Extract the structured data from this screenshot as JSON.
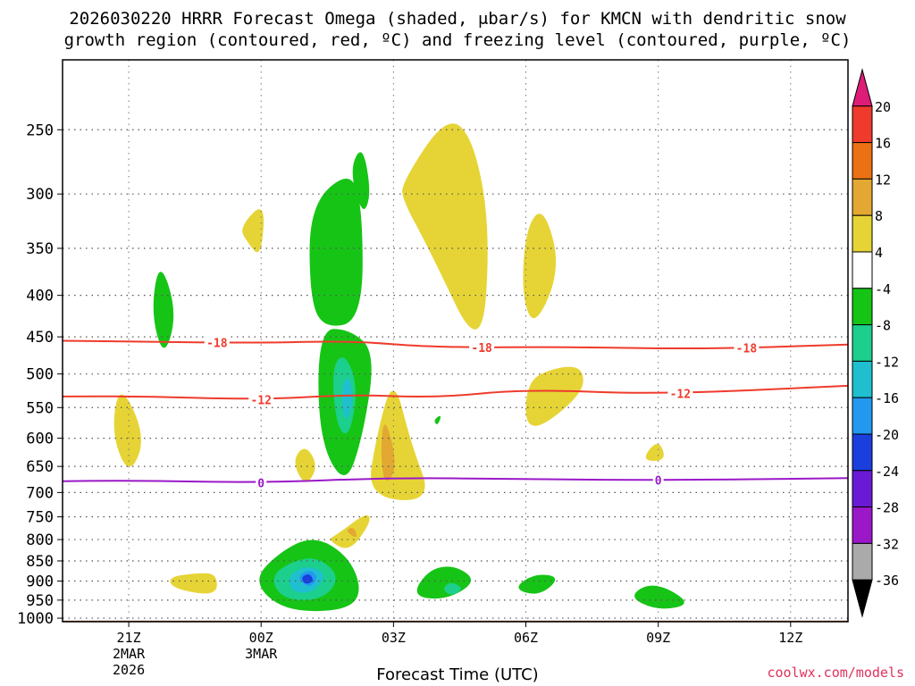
{
  "title_line1": "2026030220 HRRR Forecast Omega (shaded, μbar/s) for KMCN with dendritic snow",
  "title_line2": "growth region (contoured, red, ºC) and freezing level (contoured, purple, ºC)",
  "credit": "coolwx.com/models",
  "chart_data": {
    "type": "heatmap",
    "title": "2026030220 HRRR Forecast Omega (shaded, μbar/s) for KMCN with dendritic snow growth region (contoured, red, ºC) and freezing level (contoured, purple, ºC)",
    "xlabel": "Forecast Time (UTC)",
    "ylabel": "",
    "xlim_hours": [
      -1.5,
      16.3
    ],
    "ylim_pressure_hpa": [
      1010,
      205
    ],
    "x_ticks": [
      {
        "hour": 0,
        "label": "21Z",
        "sub1": "2MAR",
        "sub2": "2026"
      },
      {
        "hour": 3,
        "label": "00Z",
        "sub1": "3MAR",
        "sub2": ""
      },
      {
        "hour": 6,
        "label": "03Z",
        "sub1": "",
        "sub2": ""
      },
      {
        "hour": 9,
        "label": "06Z",
        "sub1": "",
        "sub2": ""
      },
      {
        "hour": 12,
        "label": "09Z",
        "sub1": "",
        "sub2": ""
      },
      {
        "hour": 15,
        "label": "12Z",
        "sub1": "",
        "sub2": ""
      }
    ],
    "y_ticks": [
      250,
      300,
      350,
      400,
      450,
      500,
      550,
      600,
      650,
      700,
      750,
      800,
      850,
      900,
      950,
      1000
    ],
    "colorbar": {
      "labels": [
        "20",
        "16",
        "12",
        "8",
        "4",
        "-4",
        "-8",
        "-12",
        "-16",
        "-20",
        "-24",
        "-28",
        "-32",
        "-36"
      ],
      "bins": [
        {
          "color": "#dd1c77",
          "shape": "tri"
        },
        {
          "color": "#ef3b2c"
        },
        {
          "color": "#ec7014"
        },
        {
          "color": "#e2a832"
        },
        {
          "color": "#e6d436"
        },
        {
          "color": "#ffffff"
        },
        {
          "color": "#16c416"
        },
        {
          "color": "#1ccf8c"
        },
        {
          "color": "#1fbfcf"
        },
        {
          "color": "#2299ee"
        },
        {
          "color": "#1a3fdd"
        },
        {
          "color": "#6a1ad4"
        },
        {
          "color": "#9a18c8"
        },
        {
          "color": "#aaaaaa"
        },
        {
          "color": "#000000",
          "shape": "tri"
        }
      ]
    },
    "omega_regions": [
      {
        "name": "yellow-region-a",
        "color": "#e6d436",
        "points": [
          [
            -0.2,
            510
          ],
          [
            0.4,
            600
          ],
          [
            0.0,
            670
          ],
          [
            -0.4,
            590
          ]
        ]
      },
      {
        "name": "yellow-region-b",
        "color": "#e6d436",
        "points": [
          [
            2.5,
            330
          ],
          [
            3.1,
            305
          ],
          [
            3.0,
            360
          ],
          [
            2.7,
            345
          ]
        ]
      },
      {
        "name": "yellow-region-c",
        "color": "#e6d436",
        "points": [
          [
            6.2,
            290
          ],
          [
            7.2,
            240
          ],
          [
            7.8,
            255
          ],
          [
            8.2,
            330
          ],
          [
            8.0,
            480
          ],
          [
            6.8,
            350
          ],
          [
            6.2,
            305
          ]
        ]
      },
      {
        "name": "yellow-region-d",
        "color": "#e6d436",
        "points": [
          [
            9.0,
            330
          ],
          [
            9.4,
            310
          ],
          [
            9.8,
            370
          ],
          [
            9.2,
            440
          ],
          [
            8.9,
            400
          ]
        ]
      },
      {
        "name": "yellow-region-e",
        "color": "#e6d436",
        "points": [
          [
            9.0,
            510
          ],
          [
            9.7,
            490
          ],
          [
            10.3,
            490
          ],
          [
            10.3,
            530
          ],
          [
            9.0,
            600
          ]
        ]
      },
      {
        "name": "yellow-region-f",
        "color": "#e6d436",
        "points": [
          [
            11.6,
            640
          ],
          [
            12.0,
            600
          ],
          [
            12.2,
            640
          ]
        ]
      },
      {
        "name": "yellow-region-g",
        "color": "#e6d436",
        "points": [
          [
            4.0,
            610
          ],
          [
            4.3,
            650
          ],
          [
            4.0,
            690
          ],
          [
            3.7,
            640
          ]
        ]
      },
      {
        "name": "yellow-region-h",
        "color": "#e6d436",
        "points": [
          [
            6.0,
            500
          ],
          [
            6.4,
            610
          ],
          [
            6.9,
            720
          ],
          [
            5.4,
            710
          ],
          [
            5.6,
            600
          ]
        ]
      },
      {
        "name": "yellow-region-i",
        "color": "#e6d436",
        "points": [
          [
            4.7,
            790
          ],
          [
            5.4,
            740
          ],
          [
            5.5,
            760
          ],
          [
            5.0,
            830
          ],
          [
            4.5,
            800
          ]
        ]
      },
      {
        "name": "yellow-region-j",
        "color": "#e6d436",
        "points": [
          [
            0.9,
            890
          ],
          [
            1.5,
            880
          ],
          [
            2.0,
            880
          ],
          [
            2.0,
            940
          ],
          [
            1.0,
            920
          ]
        ]
      },
      {
        "name": "orange-region-a",
        "color": "#e2a832",
        "points": [
          [
            5.8,
            560
          ],
          [
            6.1,
            650
          ],
          [
            5.8,
            690
          ],
          [
            5.7,
            620
          ]
        ]
      },
      {
        "name": "orange-region-b",
        "color": "#e2a832",
        "points": [
          [
            4.9,
            780
          ],
          [
            5.1,
            770
          ],
          [
            5.2,
            800
          ]
        ]
      },
      {
        "name": "green-region-a",
        "color": "#16c416",
        "points": [
          [
            4.1,
            310
          ],
          [
            5.0,
            280
          ],
          [
            5.3,
            310
          ],
          [
            5.3,
            430
          ],
          [
            4.4,
            440
          ],
          [
            4.1,
            400
          ]
        ]
      },
      {
        "name": "green-region-b",
        "color": "#16c416",
        "points": [
          [
            4.3,
            440
          ],
          [
            5.0,
            440
          ],
          [
            5.6,
            470
          ],
          [
            5.3,
            600
          ],
          [
            4.9,
            690
          ],
          [
            4.3,
            600
          ]
        ]
      },
      {
        "name": "green-region-c",
        "color": "#16c416",
        "points": [
          [
            5.0,
            280
          ],
          [
            5.3,
            260
          ],
          [
            5.5,
            300
          ],
          [
            5.3,
            320
          ]
        ]
      },
      {
        "name": "green-region-d",
        "color": "#16c416",
        "points": [
          [
            0.7,
            360
          ],
          [
            1.1,
            420
          ],
          [
            0.8,
            480
          ],
          [
            0.5,
            420
          ]
        ]
      },
      {
        "name": "green-region-e",
        "color": "#16c416",
        "points": [
          [
            6.9,
            570
          ],
          [
            7.1,
            560
          ],
          [
            7.0,
            580
          ]
        ]
      },
      {
        "name": "green-region-f",
        "color": "#16c416",
        "points": [
          [
            2.8,
            900
          ],
          [
            3.4,
            830
          ],
          [
            4.2,
            790
          ],
          [
            5.0,
            840
          ],
          [
            5.3,
            930
          ],
          [
            4.9,
            980
          ],
          [
            3.5,
            980
          ]
        ]
      },
      {
        "name": "green-region-g",
        "color": "#16c416",
        "points": [
          [
            6.4,
            940
          ],
          [
            6.8,
            870
          ],
          [
            7.4,
            860
          ],
          [
            7.9,
            900
          ],
          [
            7.2,
            950
          ]
        ]
      },
      {
        "name": "green-region-h",
        "color": "#16c416",
        "points": [
          [
            8.7,
            920
          ],
          [
            9.2,
            880
          ],
          [
            9.8,
            890
          ],
          [
            9.3,
            940
          ]
        ]
      },
      {
        "name": "green-region-i",
        "color": "#16c416",
        "points": [
          [
            11.3,
            940
          ],
          [
            11.9,
            900
          ],
          [
            12.8,
            960
          ],
          [
            12.0,
            980
          ]
        ]
      },
      {
        "name": "teal-region-a",
        "color": "#1ccf8c",
        "points": [
          [
            4.6,
            490
          ],
          [
            4.9,
            470
          ],
          [
            5.2,
            520
          ],
          [
            5.0,
            600
          ],
          [
            4.7,
            580
          ]
        ]
      },
      {
        "name": "teal-region-b",
        "color": "#1ccf8c",
        "points": [
          [
            3.2,
            890
          ],
          [
            3.7,
            850
          ],
          [
            4.3,
            840
          ],
          [
            4.8,
            890
          ],
          [
            4.4,
            950
          ],
          [
            3.5,
            950
          ]
        ]
      },
      {
        "name": "teal-region-c",
        "color": "#1ccf8c",
        "points": [
          [
            7.1,
            920
          ],
          [
            7.3,
            900
          ],
          [
            7.6,
            920
          ],
          [
            7.3,
            940
          ]
        ]
      },
      {
        "name": "cyan-region-a",
        "color": "#1fbfcf",
        "points": [
          [
            4.8,
            520
          ],
          [
            5.0,
            500
          ],
          [
            5.1,
            540
          ],
          [
            4.9,
            580
          ]
        ]
      },
      {
        "name": "cyan-region-b",
        "color": "#1fbfcf",
        "points": [
          [
            3.6,
            890
          ],
          [
            4.0,
            860
          ],
          [
            4.5,
            880
          ],
          [
            4.2,
            930
          ],
          [
            3.7,
            930
          ]
        ]
      },
      {
        "name": "blue-region-a",
        "color": "#2299ee",
        "points": [
          [
            3.8,
            890
          ],
          [
            4.1,
            870
          ],
          [
            4.3,
            890
          ],
          [
            4.1,
            920
          ]
        ]
      },
      {
        "name": "deepblue-region-a",
        "color": "#1a3fdd",
        "points": [
          [
            3.9,
            890
          ],
          [
            4.1,
            880
          ],
          [
            4.2,
            900
          ],
          [
            4.0,
            910
          ]
        ]
      }
    ],
    "contours": [
      {
        "name": "dgz-upper-contour",
        "color": "#ef3b2c",
        "label": "-18",
        "label_hour": 2.0,
        "points": [
          [
            -1.5,
            455
          ],
          [
            0,
            456
          ],
          [
            3,
            458
          ],
          [
            5,
            455
          ],
          [
            7,
            464
          ],
          [
            10,
            463
          ],
          [
            13,
            466
          ],
          [
            16.3,
            460
          ]
        ]
      },
      {
        "name": "dgz-lower-contour",
        "color": "#ef3b2c",
        "label": "-12",
        "label_hour": 3.0,
        "points": [
          [
            -1.5,
            533
          ],
          [
            0,
            532
          ],
          [
            3,
            538
          ],
          [
            5,
            530
          ],
          [
            7,
            535
          ],
          [
            9,
            522
          ],
          [
            12,
            530
          ],
          [
            16.3,
            517
          ]
        ]
      },
      {
        "name": "freezing-level-contour",
        "color": "#9a18c8",
        "label": "0",
        "label_hour": 3.0,
        "points": [
          [
            -1.5,
            678
          ],
          [
            0,
            676
          ],
          [
            3,
            681
          ],
          [
            6,
            671
          ],
          [
            9,
            674
          ],
          [
            12,
            676
          ],
          [
            16.3,
            672
          ]
        ]
      }
    ],
    "contour_label_extra": [
      {
        "contour": "dgz-upper-contour",
        "hour": 8.0
      },
      {
        "contour": "dgz-upper-contour",
        "hour": 14.0
      },
      {
        "contour": "dgz-lower-contour",
        "hour": 12.5
      },
      {
        "contour": "freezing-level-contour",
        "hour": 12.0
      }
    ],
    "terrain": {
      "color": "#a0522d",
      "surface_pressure_hpa": 1007
    }
  }
}
